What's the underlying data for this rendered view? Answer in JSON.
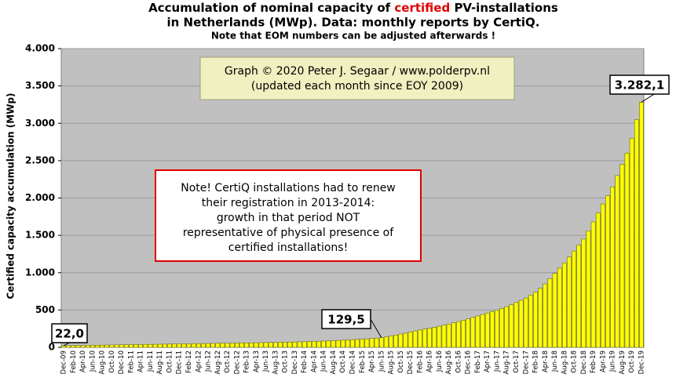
{
  "chart_data": {
    "type": "bar",
    "title_parts": [
      "Accumulation  of nominal capacity of ",
      "certified",
      " PV-installations"
    ],
    "title_line2": "in Netherlands (MWp). Data: monthly  reports by CertiQ.",
    "subtitle": "Note that EOM numbers can be adjusted afterwards  !",
    "ylabel": "Certified capacity accumulation (MWp)",
    "copyright": [
      "Graph © 2020 Peter J. Segaar / www.polderpv.nl",
      "(updated each month since EOY 2009)"
    ],
    "note": [
      "Note! CertiQ installations had to renew",
      "their registration in 2013-2014:",
      "growth in that period NOT",
      "representative of physical presence of",
      "certified installations!"
    ],
    "color": "#ffff00",
    "ylim": [
      0,
      4000
    ],
    "yticks": [
      0,
      {
        "value": 500,
        "label": "500"
      },
      {
        "value": 1000,
        "label": "1.000"
      },
      {
        "value": 1500,
        "label": "1.500"
      },
      {
        "value": 2000,
        "label": "2.000"
      },
      {
        "value": 2500,
        "label": "2.500"
      },
      {
        "value": 3000,
        "label": "3.000"
      },
      {
        "value": 3500,
        "label": "3.500"
      },
      {
        "value": 4000,
        "label": "4.000"
      }
    ],
    "grid": true,
    "categories": [
      "Dec-09",
      null,
      "Feb-10",
      null,
      "Apr-10",
      null,
      "Jun-10",
      null,
      "Aug-10",
      null,
      "Oct-10",
      null,
      "Dec-10",
      null,
      "Feb-11",
      null,
      "Apr-11",
      null,
      "Jun-11",
      null,
      "Aug-11",
      null,
      "Oct-11",
      null,
      "Dec-11",
      null,
      "Feb-12",
      null,
      "Apr-12",
      null,
      "Jun-12",
      null,
      "Aug-12",
      null,
      "Oct-12",
      null,
      "Dec-12",
      null,
      "Feb-13",
      null,
      "Apr-13",
      null,
      "Jun-13",
      null,
      "Aug-13",
      null,
      "Oct-13",
      null,
      "Dec-13",
      null,
      "Feb-14",
      null,
      "Apr-14",
      null,
      "Jun-14",
      null,
      "Aug-14",
      null,
      "Oct-14",
      null,
      "Dec-14",
      null,
      "Feb-15",
      null,
      "Apr-15",
      null,
      "Jun-15",
      null,
      "Aug-15",
      null,
      "Oct-15",
      null,
      "Dec-15",
      null,
      "Feb-16",
      null,
      "Apr-16",
      null,
      "Jun-16",
      null,
      "Aug-16",
      null,
      "Oct-16",
      null,
      "Dec-16",
      null,
      "Feb-17",
      null,
      "Apr-17",
      null,
      "Jun-17",
      null,
      "Aug-17",
      null,
      "Oct-17",
      null,
      "Dec-17",
      null,
      "Feb-18",
      null,
      "Apr-18",
      null,
      "Jun-18",
      null,
      "Aug-18",
      null,
      "Oct-18",
      null,
      "Dec-18",
      null,
      "Feb-19",
      null,
      "Apr-19",
      null,
      "Jun-19",
      null,
      "Aug-19",
      null,
      "Oct-19",
      null,
      "Dec-19"
    ],
    "values": [
      22,
      23,
      24,
      25,
      26,
      27,
      28,
      29,
      30,
      31,
      32,
      33,
      34,
      35,
      36,
      37,
      38,
      39,
      40,
      41,
      42,
      43,
      44,
      45,
      46,
      47,
      48,
      49,
      50,
      51,
      52,
      53,
      54,
      55,
      56,
      57,
      58,
      59,
      60,
      61,
      62,
      63,
      64,
      66,
      67,
      68,
      69,
      70,
      72,
      74,
      76,
      78,
      80,
      82,
      84,
      87,
      90,
      93,
      96,
      99,
      102,
      106,
      110,
      114,
      118,
      122,
      129.5,
      140,
      152,
      165,
      178,
      190,
      205,
      220,
      232,
      244,
      256,
      268,
      282,
      296,
      312,
      328,
      345,
      362,
      380,
      400,
      420,
      440,
      460,
      480,
      500,
      520,
      545,
      570,
      600,
      630,
      660,
      700,
      740,
      790,
      850,
      920,
      990,
      1060,
      1130,
      1210,
      1290,
      1370,
      1450,
      1560,
      1680,
      1800,
      1920,
      2030,
      2150,
      2300,
      2450,
      2600,
      2800,
      3050,
      3282.1
    ],
    "value_labels": [
      "22,0",
      null,
      null,
      null,
      null,
      null,
      null,
      null,
      null,
      null,
      null,
      null,
      null,
      null,
      null,
      null,
      null,
      null,
      null,
      null,
      null,
      null,
      null,
      null,
      null,
      null,
      null,
      null,
      null,
      null,
      null,
      null,
      null,
      null,
      null,
      null,
      null,
      null,
      null,
      null,
      null,
      null,
      null,
      null,
      null,
      null,
      null,
      null,
      null,
      null,
      null,
      null,
      null,
      null,
      null,
      null,
      null,
      null,
      null,
      null,
      null,
      null,
      null,
      null,
      null,
      null,
      "129,5",
      null,
      null,
      null,
      null,
      null,
      null,
      null,
      null,
      null,
      null,
      null,
      null,
      null,
      null,
      null,
      null,
      null,
      null,
      null,
      null,
      null,
      null,
      null,
      null,
      null,
      null,
      null,
      null,
      null,
      null,
      null,
      null,
      null,
      null,
      null,
      null,
      null,
      null,
      null,
      null,
      null,
      null,
      null,
      null,
      null,
      null,
      null,
      null,
      null,
      null,
      null,
      null,
      null,
      "3.282,1"
    ]
  }
}
